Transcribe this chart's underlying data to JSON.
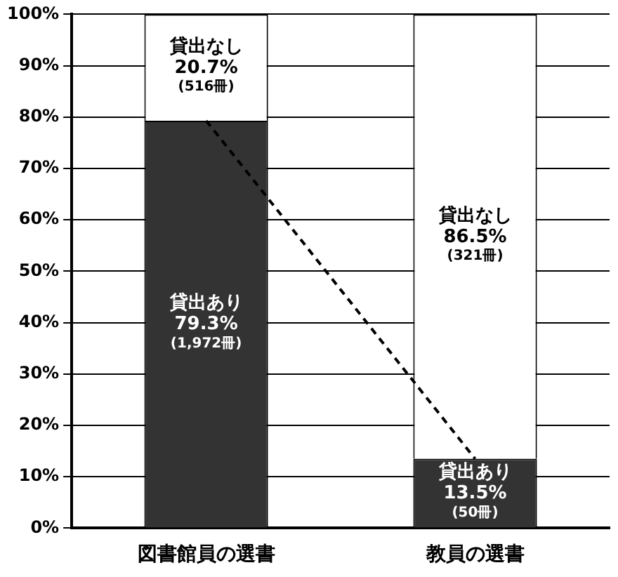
{
  "chart_data": {
    "type": "bar",
    "stacked": true,
    "categories": [
      "図書館員の選書",
      "教員の選書"
    ],
    "series": [
      {
        "name": "貸出あり",
        "color": "#333333",
        "values": [
          79.3,
          13.5
        ],
        "value_labels": [
          "79.3%\n(1,972冊)",
          "13.5%\n(50冊)"
        ]
      },
      {
        "name": "貸出なし",
        "color": "#ffffff",
        "values": [
          20.7,
          86.5
        ],
        "value_labels": [
          "20.7%\n(516冊)",
          "86.5%\n(321冊)"
        ]
      },
      {
        "type": "line",
        "color": "#000000",
        "values": [
          79.3,
          13.5
        ],
        "line_style": "dashed",
        "marker": "none"
      }
    ],
    "ylim": [
      0,
      100
    ],
    "yticks": [
      {
        "value": 0,
        "label": "0%"
      },
      {
        "value": 10,
        "label": "10%"
      },
      {
        "value": 20,
        "label": "20%"
      },
      {
        "value": 30,
        "label": "30%"
      },
      {
        "value": 40,
        "label": "40%"
      },
      {
        "value": 50,
        "label": "50%"
      },
      {
        "value": 60,
        "label": "60%"
      },
      {
        "value": 70,
        "label": "70%"
      },
      {
        "value": 80,
        "label": "80%"
      },
      {
        "value": 90,
        "label": "90%"
      },
      {
        "value": 100,
        "label": "100%"
      }
    ],
    "grid": "y",
    "legend": false
  }
}
